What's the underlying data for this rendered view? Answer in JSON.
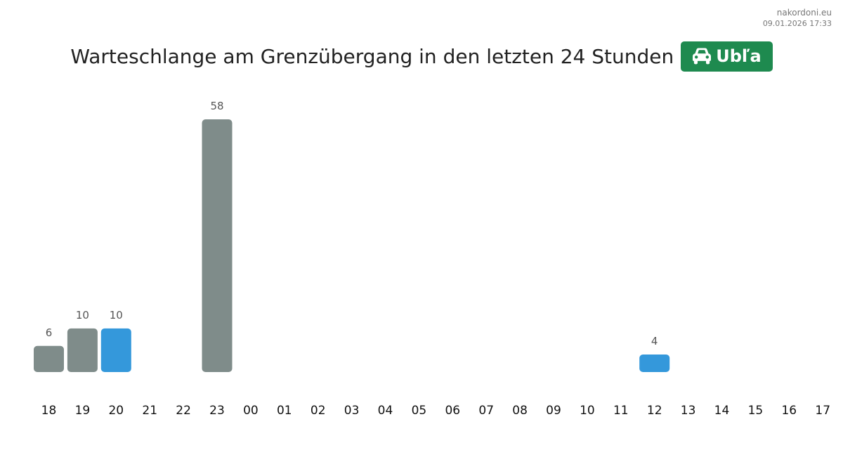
{
  "source": {
    "site": "nakordoni.eu",
    "datetime": "09.01.2026 17:33"
  },
  "title": "Warteschlange am Grenzübergang in den letzten 24 Stunden",
  "badge": {
    "label": "Ubľa",
    "icon": "car-icon",
    "color": "#1e8a4f"
  },
  "chart_data": {
    "type": "bar",
    "categories": [
      "18",
      "19",
      "20",
      "21",
      "22",
      "23",
      "00",
      "01",
      "02",
      "03",
      "04",
      "05",
      "06",
      "07",
      "08",
      "09",
      "10",
      "11",
      "12",
      "13",
      "14",
      "15",
      "16",
      "17"
    ],
    "values": [
      6,
      10,
      10,
      null,
      null,
      58,
      null,
      null,
      null,
      null,
      null,
      null,
      null,
      null,
      null,
      null,
      null,
      null,
      4,
      null,
      null,
      null,
      null,
      null
    ],
    "highlighted": [
      "20",
      "12"
    ],
    "colors": {
      "default": "#7f8c8a",
      "highlight": "#3498db"
    },
    "data_labels": true,
    "grid": false,
    "ylim": [
      0,
      58
    ]
  }
}
